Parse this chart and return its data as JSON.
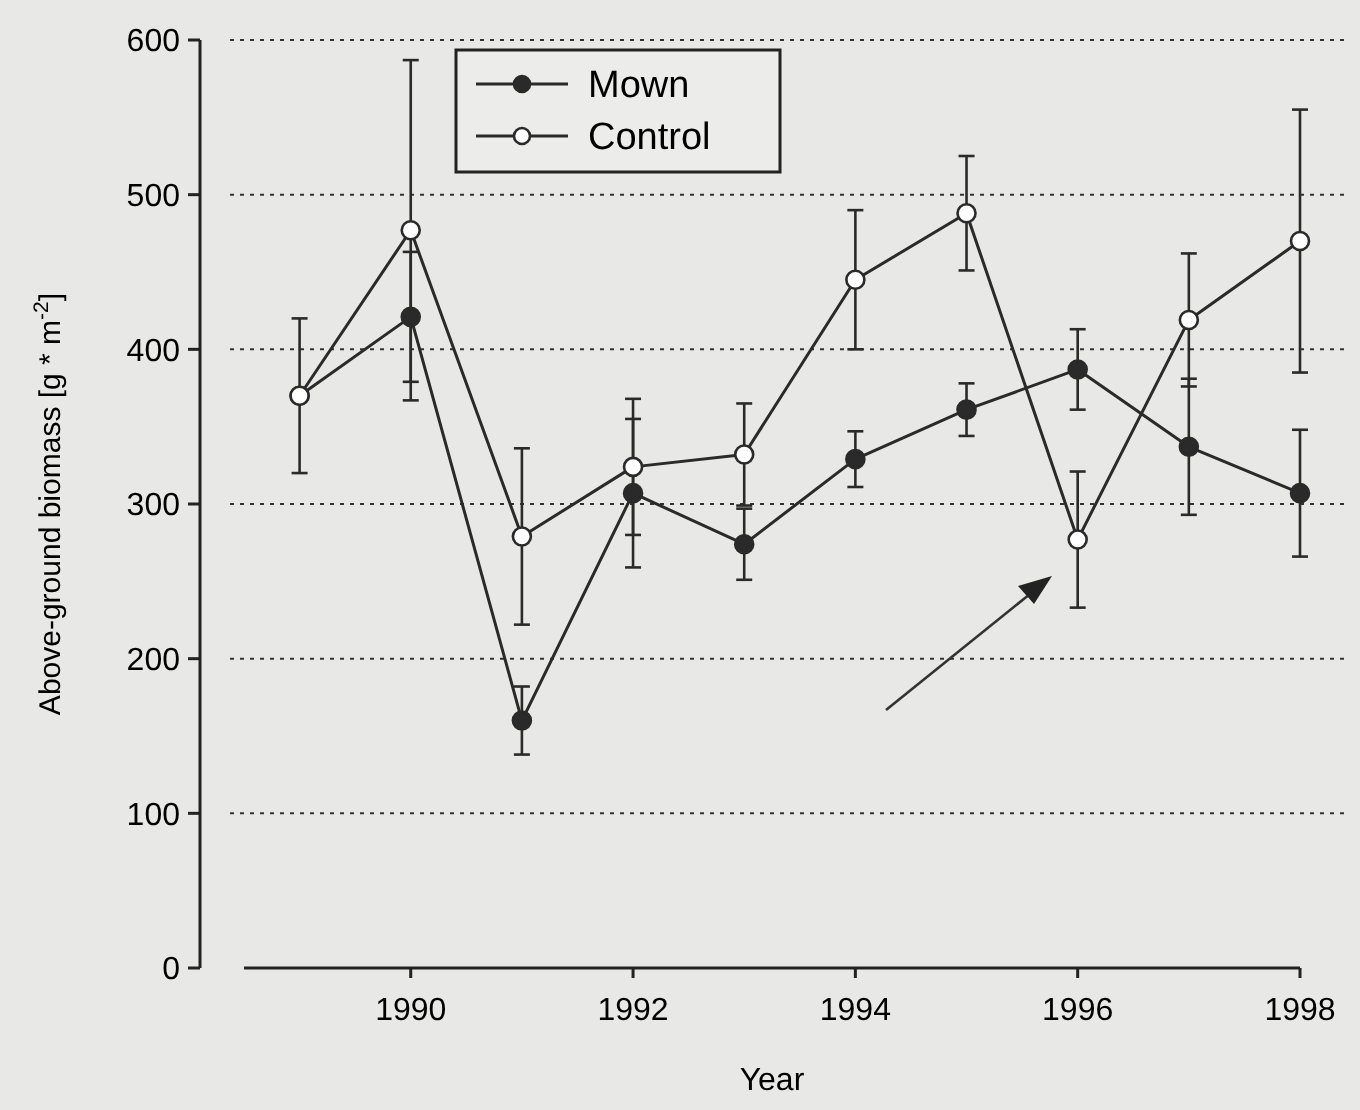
{
  "chart_data": {
    "type": "line",
    "xlabel": "Year",
    "ylabel": "Above-ground biomass [g * m$^{-2}$]",
    "x": [
      1989,
      1990,
      1991,
      1992,
      1993,
      1994,
      1995,
      1996,
      1997,
      1998
    ],
    "xlim": [
      1988.5,
      1998
    ],
    "xticks": [
      1990,
      1992,
      1994,
      1996,
      1998
    ],
    "ylim": [
      0,
      600
    ],
    "yticks": [
      0,
      100,
      200,
      300,
      400,
      500,
      600
    ],
    "grid": "y",
    "legend": "top left",
    "marker": "circle",
    "line_style": "solid",
    "series": [
      {
        "name": "Mown",
        "color": "#2a2a2a",
        "values": [
          370,
          421,
          160,
          307,
          274,
          329,
          361,
          387,
          337,
          307
        ],
        "errors": [
          null,
          42,
          22,
          48,
          23,
          18,
          17,
          26,
          44,
          41
        ]
      },
      {
        "name": "Control",
        "color": "#2a2a2a",
        "values": [
          370,
          477,
          279,
          324,
          332,
          445,
          488,
          277,
          419,
          470
        ],
        "errors": [
          50,
          110,
          57,
          44,
          33,
          45,
          37,
          44,
          43,
          85
        ]
      }
    ]
  }
}
